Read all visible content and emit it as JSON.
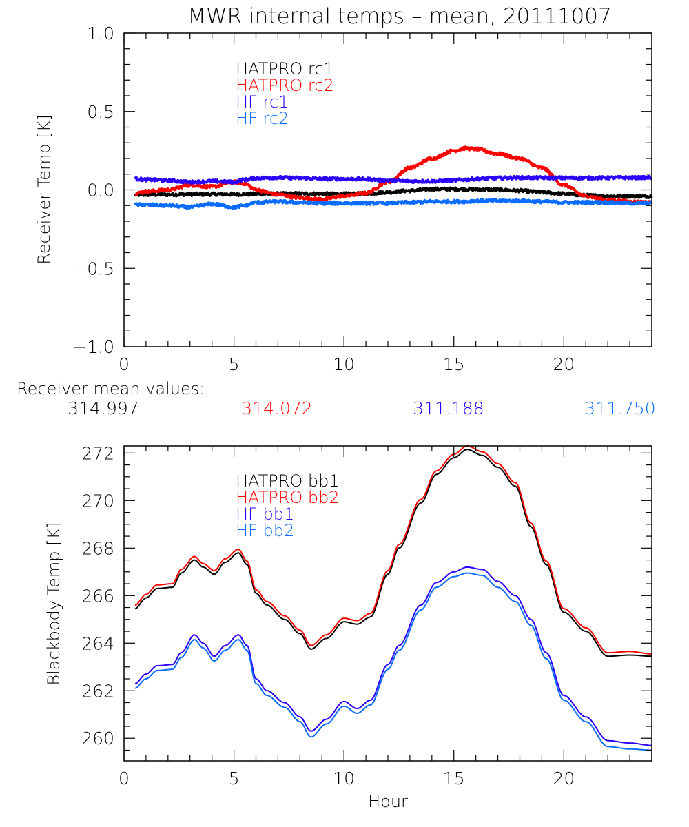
{
  "figure_title": "MWR internal temps – mean, 20111007",
  "mean_values": {
    "label": "Receiver mean values:",
    "items": [
      {
        "value": "314.997",
        "color": "#000000"
      },
      {
        "value": "314.072",
        "color": "#ff0000"
      },
      {
        "value": "311.188",
        "color": "#2b00ff"
      },
      {
        "value": "311.750",
        "color": "#0a6cff"
      }
    ]
  },
  "chart_data": [
    {
      "type": "line",
      "title": "MWR internal temps – mean, 20111007",
      "xlabel": "",
      "ylabel": "Receiver Temp [K]",
      "xlim": [
        0,
        24
      ],
      "ylim": [
        -1.0,
        1.0
      ],
      "xticks": [
        0,
        5,
        10,
        15,
        20
      ],
      "xtick_labels": [
        "0",
        "5",
        "10",
        "15",
        "20"
      ],
      "x_minor_step": 1,
      "yticks": [
        -1.0,
        -0.5,
        0.0,
        0.5,
        1.0
      ],
      "ytick_labels": [
        "−1.0",
        "−0.5",
        "0.0",
        "0.5",
        "1.0"
      ],
      "y_minor_step": 0.1,
      "grid": false,
      "legend_position": "top-left",
      "noisy": true,
      "x": [
        0.5,
        1,
        2,
        3,
        4,
        5,
        5.5,
        6,
        7,
        8,
        9,
        10,
        11,
        12,
        13,
        14,
        15,
        15.5,
        16,
        17,
        18,
        19,
        20,
        21,
        22,
        23,
        24
      ],
      "series": [
        {
          "name": "HATPRO rc1",
          "color": "#000000",
          "values": [
            -0.03,
            -0.03,
            -0.03,
            -0.028,
            -0.028,
            -0.028,
            -0.028,
            -0.026,
            -0.025,
            -0.024,
            -0.025,
            -0.026,
            -0.024,
            -0.015,
            -0.005,
            0.005,
            0.005,
            0.004,
            0.003,
            0.0,
            -0.005,
            -0.015,
            -0.025,
            -0.035,
            -0.04,
            -0.04,
            -0.042
          ]
        },
        {
          "name": "HATPRO rc2",
          "color": "#ff0000",
          "values": [
            -0.025,
            -0.01,
            0.0,
            0.03,
            0.02,
            0.05,
            0.04,
            0.0,
            -0.03,
            -0.05,
            -0.06,
            -0.04,
            -0.02,
            0.05,
            0.14,
            0.2,
            0.25,
            0.265,
            0.26,
            0.23,
            0.2,
            0.14,
            0.03,
            -0.04,
            -0.065,
            -0.075,
            -0.08
          ]
        },
        {
          "name": "HF rc1",
          "color": "#2b00ff",
          "values": [
            0.07,
            0.065,
            0.06,
            0.05,
            0.055,
            0.05,
            0.065,
            0.075,
            0.078,
            0.075,
            0.07,
            0.07,
            0.068,
            0.06,
            0.055,
            0.055,
            0.06,
            0.065,
            0.07,
            0.075,
            0.078,
            0.077,
            0.076,
            0.076,
            0.077,
            0.078,
            0.078
          ]
        },
        {
          "name": "HF rc2",
          "color": "#0a6cff",
          "values": [
            -0.095,
            -0.095,
            -0.1,
            -0.11,
            -0.09,
            -0.11,
            -0.1,
            -0.08,
            -0.075,
            -0.08,
            -0.085,
            -0.085,
            -0.085,
            -0.085,
            -0.08,
            -0.075,
            -0.075,
            -0.075,
            -0.07,
            -0.07,
            -0.07,
            -0.075,
            -0.08,
            -0.08,
            -0.08,
            -0.085,
            -0.085
          ]
        }
      ],
      "annotations": []
    },
    {
      "type": "line",
      "title": "",
      "xlabel": "Hour",
      "ylabel": "Blackbody Temp [K]",
      "xlim": [
        0,
        24
      ],
      "ylim": [
        259.05,
        272.3
      ],
      "xticks": [
        0,
        5,
        10,
        15,
        20
      ],
      "xtick_labels": [
        "0",
        "5",
        "10",
        "15",
        "20"
      ],
      "x_minor_step": 1,
      "yticks": [
        260,
        262,
        264,
        266,
        268,
        270,
        272
      ],
      "ytick_labels": [
        "260",
        "262",
        "264",
        "266",
        "268",
        "270",
        "272"
      ],
      "y_minor_step": 0.5,
      "grid": false,
      "legend_position": "top-left",
      "noisy": false,
      "x": [
        0.5,
        1,
        1.5,
        2.2,
        2.6,
        3.2,
        3.6,
        4.1,
        4.6,
        5.2,
        5.6,
        6,
        6.5,
        7.3,
        8,
        8.5,
        9.2,
        10,
        10.6,
        11.2,
        12,
        12.5,
        13.5,
        14.2,
        15,
        15.6,
        16.3,
        17,
        17.8,
        18.5,
        19.2,
        20,
        21,
        22,
        23,
        24
      ],
      "series": [
        {
          "name": "HATPRO bb1",
          "color": "#000000",
          "values": [
            265.45,
            265.9,
            266.3,
            266.35,
            266.95,
            267.5,
            267.2,
            266.9,
            267.4,
            267.8,
            267.3,
            266.1,
            265.6,
            265.0,
            264.4,
            263.75,
            264.2,
            264.9,
            264.8,
            265.1,
            266.9,
            268.0,
            269.9,
            271.1,
            271.8,
            272.15,
            271.9,
            271.4,
            270.6,
            268.9,
            267.3,
            265.3,
            264.5,
            263.45,
            263.5,
            263.45
          ]
        },
        {
          "name": "HATPRO bb2",
          "color": "#ff0000",
          "values": [
            265.6,
            266.05,
            266.45,
            266.5,
            267.1,
            267.65,
            267.35,
            267.05,
            267.55,
            267.95,
            267.45,
            266.25,
            265.75,
            265.15,
            264.55,
            263.9,
            264.35,
            265.05,
            264.95,
            265.25,
            267.05,
            268.15,
            270.05,
            271.25,
            271.95,
            272.3,
            272.05,
            271.55,
            270.75,
            269.05,
            267.45,
            265.45,
            264.65,
            263.6,
            263.65,
            263.55
          ]
        },
        {
          "name": "HF bb1",
          "color": "#2b00ff",
          "values": [
            262.3,
            262.7,
            263.05,
            263.1,
            263.6,
            264.35,
            264.0,
            263.45,
            263.9,
            264.35,
            263.9,
            262.5,
            262.0,
            261.5,
            260.9,
            260.3,
            260.8,
            261.55,
            261.25,
            261.6,
            263.1,
            263.9,
            265.6,
            266.55,
            267.0,
            267.2,
            267.1,
            266.6,
            266.0,
            265.0,
            263.6,
            261.8,
            260.9,
            259.9,
            259.8,
            259.7
          ]
        },
        {
          "name": "HF bb2",
          "color": "#0a6cff",
          "values": [
            262.1,
            262.5,
            262.85,
            262.9,
            263.4,
            264.15,
            263.8,
            263.25,
            263.7,
            264.15,
            263.7,
            262.3,
            261.8,
            261.3,
            260.7,
            260.05,
            260.6,
            261.35,
            261.05,
            261.4,
            262.9,
            263.7,
            265.4,
            266.35,
            266.8,
            266.95,
            266.85,
            266.35,
            265.75,
            264.75,
            263.35,
            261.6,
            260.7,
            259.65,
            259.55,
            259.5
          ]
        }
      ],
      "annotations": []
    }
  ]
}
